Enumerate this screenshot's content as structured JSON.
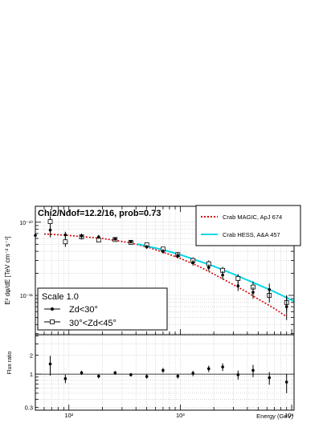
{
  "chart_data": [
    {
      "type": "scatter",
      "panel": "spectrum",
      "title": "Chi2/Ndof=12.2/16, prob=0.73",
      "xlabel": "Energy (GeV)",
      "ylabel": "E² dφ/dE [TeV cm⁻² s⁻¹]",
      "x_scale": "log",
      "y_scale": "log",
      "xlim": [
        50,
        10500
      ],
      "ylim": [
        2.9e-12,
        1.65e-10
      ],
      "x_ticks": [
        {
          "value": 100,
          "label": "10²"
        },
        {
          "value": 1000,
          "label": "10³"
        },
        {
          "value": 10000,
          "label": "10⁴"
        }
      ],
      "y_ticks": [
        {
          "value": 1e-10,
          "label": "10⁻¹⁰"
        },
        {
          "value": 1e-11,
          "label": "10⁻¹¹"
        }
      ],
      "grid": true,
      "legend_top": [
        {
          "label": "Crab MAGIC, ApJ 674",
          "color": "#d40000",
          "style": "dotted"
        },
        {
          "label": "Crab HESS, A&A 457",
          "color": "#00d8e8",
          "style": "solid"
        }
      ],
      "legend_bottom": {
        "header": "Scale 1.0",
        "entries": [
          {
            "label": "Zd<30°",
            "marker": "filled-circle"
          },
          {
            "label": "30°<Zd<45°",
            "marker": "open-square"
          }
        ]
      },
      "series": [
        {
          "name": "Zd<30°",
          "marker": "filled-circle",
          "points": [
            {
              "x": 50,
              "y": 6.6e-11,
              "ylo": 5.3e-11,
              "yhi": 8e-11
            },
            {
              "x": 68,
              "y": 7.8e-11,
              "ylo": 6.2e-11,
              "yhi": 9.4e-11
            },
            {
              "x": 93,
              "y": 6.7e-11,
              "ylo": 6e-11,
              "yhi": 7.4e-11
            },
            {
              "x": 130,
              "y": 6.5e-11,
              "ylo": 6e-11,
              "yhi": 7e-11
            },
            {
              "x": 185,
              "y": 6.3e-11,
              "ylo": 5.9e-11,
              "yhi": 6.7e-11
            },
            {
              "x": 260,
              "y": 5.9e-11,
              "ylo": 5.6e-11,
              "yhi": 6.2e-11
            },
            {
              "x": 360,
              "y": 5.4e-11,
              "ylo": 5.1e-11,
              "yhi": 5.7e-11
            },
            {
              "x": 500,
              "y": 4.6e-11,
              "ylo": 4.3e-11,
              "yhi": 4.9e-11
            },
            {
              "x": 700,
              "y": 4e-11,
              "ylo": 3.7e-11,
              "yhi": 4.3e-11
            },
            {
              "x": 950,
              "y": 3.5e-11,
              "ylo": 3.2e-11,
              "yhi": 3.8e-11
            },
            {
              "x": 1300,
              "y": 2.8e-11,
              "ylo": 2.55e-11,
              "yhi": 3.05e-11
            },
            {
              "x": 1800,
              "y": 2.4e-11,
              "ylo": 2.15e-11,
              "yhi": 2.65e-11
            },
            {
              "x": 2400,
              "y": 1.9e-11,
              "ylo": 1.65e-11,
              "yhi": 2.15e-11
            },
            {
              "x": 3300,
              "y": 1.35e-11,
              "ylo": 1.15e-11,
              "yhi": 1.55e-11
            },
            {
              "x": 4500,
              "y": 1.1e-11,
              "ylo": 9e-12,
              "yhi": 1.3e-11
            },
            {
              "x": 6300,
              "y": 1.2e-11,
              "ylo": 9.5e-12,
              "yhi": 1.45e-11
            },
            {
              "x": 9000,
              "y": 7e-12,
              "ylo": 4.6e-12,
              "yhi": 9.8e-12
            }
          ]
        },
        {
          "name": "30°<Zd<45°",
          "marker": "open-square",
          "points": [
            {
              "x": 68,
              "y": 1.02e-10,
              "ylo": 8.5e-11,
              "yhi": 1.2e-10
            },
            {
              "x": 93,
              "y": 5.4e-11,
              "ylo": 4.6e-11,
              "yhi": 6.2e-11
            },
            {
              "x": 130,
              "y": 6.3e-11,
              "ylo": 5.8e-11,
              "yhi": 6.8e-11
            },
            {
              "x": 185,
              "y": 5.7e-11,
              "ylo": 5.3e-11,
              "yhi": 6.1e-11
            },
            {
              "x": 260,
              "y": 5.8e-11,
              "ylo": 5.5e-11,
              "yhi": 6.1e-11
            },
            {
              "x": 360,
              "y": 5.3e-11,
              "ylo": 5e-11,
              "yhi": 5.6e-11
            },
            {
              "x": 500,
              "y": 4.9e-11,
              "ylo": 4.6e-11,
              "yhi": 5.2e-11
            },
            {
              "x": 700,
              "y": 4.3e-11,
              "ylo": 4e-11,
              "yhi": 4.6e-11
            },
            {
              "x": 950,
              "y": 3.6e-11,
              "ylo": 3.3e-11,
              "yhi": 3.9e-11
            },
            {
              "x": 1300,
              "y": 3e-11,
              "ylo": 2.7e-11,
              "yhi": 3.3e-11
            },
            {
              "x": 1800,
              "y": 2.7e-11,
              "ylo": 2.4e-11,
              "yhi": 3e-11
            },
            {
              "x": 2400,
              "y": 2.2e-11,
              "ylo": 1.95e-11,
              "yhi": 2.45e-11
            },
            {
              "x": 3300,
              "y": 1.7e-11,
              "ylo": 1.45e-11,
              "yhi": 1.95e-11
            },
            {
              "x": 4500,
              "y": 1.3e-11,
              "ylo": 1.05e-11,
              "yhi": 1.55e-11
            },
            {
              "x": 6300,
              "y": 1e-11,
              "ylo": 8e-12,
              "yhi": 1.2e-11
            },
            {
              "x": 9000,
              "y": 8e-12,
              "ylo": 6e-12,
              "yhi": 1e-11
            }
          ]
        }
      ],
      "curves": [
        {
          "name": "Crab MAGIC, ApJ 674",
          "color": "#d40000",
          "style": "dotted",
          "points": [
            [
              60,
              6.9e-11
            ],
            [
              100,
              6.6e-11
            ],
            [
              200,
              6e-11
            ],
            [
              350,
              5.25e-11
            ],
            [
              500,
              4.6e-11
            ],
            [
              700,
              3.9e-11
            ],
            [
              1000,
              3.2e-11
            ],
            [
              1500,
              2.45e-11
            ],
            [
              2000,
              1.95e-11
            ],
            [
              3000,
              1.4e-11
            ],
            [
              4000,
              1.1e-11
            ],
            [
              5000,
              8.9e-12
            ],
            [
              7000,
              6.6e-12
            ],
            [
              9000,
              5.1e-12
            ]
          ]
        },
        {
          "name": "Crab HESS, A&A 457",
          "color": "#00d8e8",
          "style": "solid",
          "points": [
            [
              410,
              5.05e-11
            ],
            [
              700,
              4.2e-11
            ],
            [
              1000,
              3.6e-11
            ],
            [
              2000,
              2.5e-11
            ],
            [
              3000,
              1.95e-11
            ],
            [
              5000,
              1.4e-11
            ],
            [
              7000,
              1.12e-11
            ],
            [
              10500,
              8.3e-12
            ]
          ]
        }
      ]
    },
    {
      "type": "scatter",
      "panel": "ratio",
      "ylabel": "Flux ratio",
      "x_scale": "log",
      "y_scale": "log",
      "xlim": [
        50,
        10500
      ],
      "ylim": [
        0.27,
        4.2
      ],
      "y_ticks": [
        {
          "value": 0.3,
          "label": "0.3"
        },
        {
          "value": 1,
          "label": "1"
        },
        {
          "value": 2,
          "label": "2"
        }
      ],
      "reference_line": 1,
      "points": [
        {
          "x": 68,
          "y": 1.45,
          "ylo": 0.95,
          "yhi": 1.95
        },
        {
          "x": 93,
          "y": 0.85,
          "ylo": 0.72,
          "yhi": 0.98
        },
        {
          "x": 130,
          "y": 1.05,
          "ylo": 0.97,
          "yhi": 1.13
        },
        {
          "x": 185,
          "y": 0.93,
          "ylo": 0.86,
          "yhi": 1.0
        },
        {
          "x": 260,
          "y": 1.05,
          "ylo": 0.98,
          "yhi": 1.12
        },
        {
          "x": 360,
          "y": 0.98,
          "ylo": 0.92,
          "yhi": 1.04
        },
        {
          "x": 500,
          "y": 0.92,
          "ylo": 0.85,
          "yhi": 0.99
        },
        {
          "x": 700,
          "y": 1.15,
          "ylo": 1.05,
          "yhi": 1.25
        },
        {
          "x": 950,
          "y": 0.93,
          "ylo": 0.85,
          "yhi": 1.01
        },
        {
          "x": 1300,
          "y": 1.03,
          "ylo": 0.93,
          "yhi": 1.13
        },
        {
          "x": 1800,
          "y": 1.22,
          "ylo": 1.08,
          "yhi": 1.36
        },
        {
          "x": 2400,
          "y": 1.3,
          "ylo": 1.12,
          "yhi": 1.48
        },
        {
          "x": 3300,
          "y": 0.98,
          "ylo": 0.82,
          "yhi": 1.14
        },
        {
          "x": 4500,
          "y": 1.15,
          "ylo": 0.9,
          "yhi": 1.4
        },
        {
          "x": 6300,
          "y": 0.88,
          "ylo": 0.68,
          "yhi": 1.08
        },
        {
          "x": 9000,
          "y": 0.75,
          "ylo": 0.5,
          "yhi": 1.0
        }
      ]
    }
  ]
}
